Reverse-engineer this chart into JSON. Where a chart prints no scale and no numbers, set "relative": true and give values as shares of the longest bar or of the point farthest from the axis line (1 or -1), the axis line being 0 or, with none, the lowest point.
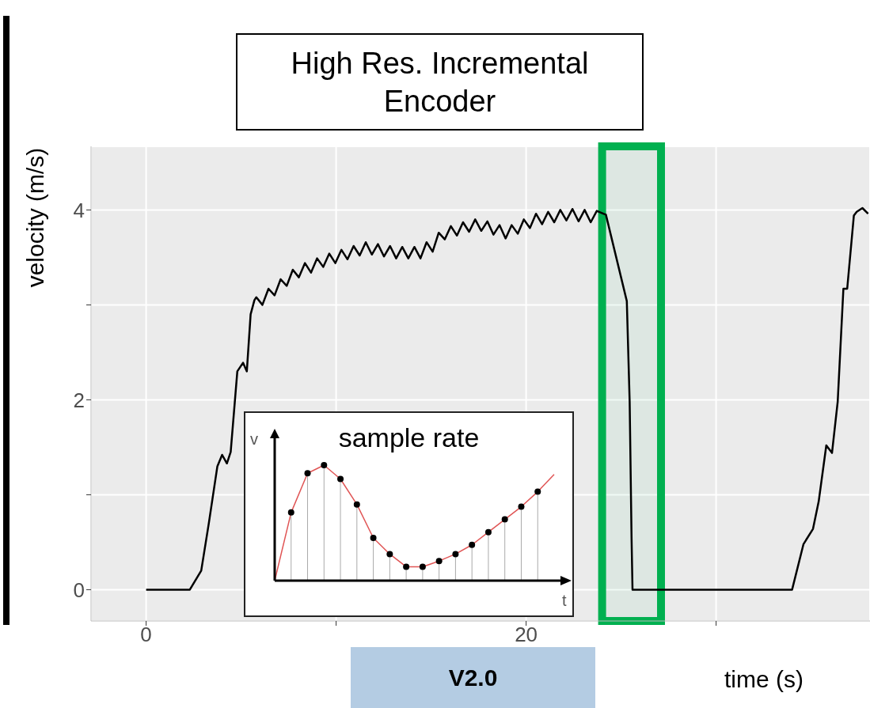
{
  "chart_data": [
    {
      "type": "line",
      "title": "High Res. Incremental Encoder",
      "xlabel": "time (s)",
      "ylabel": "velocity (m/s)",
      "annotations": [
        "V2.0"
      ],
      "x": [
        0,
        2.3,
        2.9,
        3.3,
        3.75,
        4.0,
        4.25,
        4.45,
        4.8,
        5.1,
        5.3,
        5.5,
        5.7,
        5.8,
        6.12,
        6.44,
        6.76,
        7.08,
        7.4,
        7.72,
        8.04,
        8.36,
        8.68,
        9.0,
        9.32,
        9.64,
        9.96,
        10.28,
        10.6,
        10.92,
        11.24,
        11.56,
        11.88,
        12.2,
        12.52,
        12.84,
        13.16,
        13.48,
        13.8,
        14.12,
        14.44,
        14.76,
        15.08,
        15.4,
        15.72,
        16.04,
        16.36,
        16.68,
        17.0,
        17.32,
        17.64,
        17.96,
        18.28,
        18.6,
        18.92,
        19.24,
        19.56,
        19.88,
        20.2,
        20.52,
        20.84,
        21.16,
        21.48,
        21.8,
        22.12,
        22.44,
        22.76,
        23.08,
        23.4,
        23.72,
        24.2,
        25.3,
        25.45,
        25.55,
        25.6,
        34.0,
        34.6,
        35.1,
        35.4,
        35.8,
        36.1,
        36.4,
        36.7,
        36.9,
        37.25,
        37.4,
        37.7,
        38.0
      ],
      "values": [
        0,
        0,
        0.2,
        0.7,
        1.3,
        1.42,
        1.33,
        1.45,
        2.3,
        2.39,
        2.3,
        2.9,
        3.05,
        3.08,
        3.0,
        3.17,
        3.1,
        3.27,
        3.2,
        3.37,
        3.29,
        3.44,
        3.34,
        3.49,
        3.4,
        3.54,
        3.44,
        3.58,
        3.48,
        3.62,
        3.52,
        3.66,
        3.53,
        3.64,
        3.51,
        3.62,
        3.49,
        3.61,
        3.49,
        3.61,
        3.49,
        3.66,
        3.56,
        3.76,
        3.69,
        3.83,
        3.73,
        3.87,
        3.77,
        3.9,
        3.78,
        3.88,
        3.74,
        3.84,
        3.7,
        3.84,
        3.75,
        3.9,
        3.81,
        3.96,
        3.85,
        3.98,
        3.87,
        4.0,
        3.89,
        4.01,
        3.88,
        4.0,
        3.87,
        3.99,
        3.95,
        3.04,
        1.98,
        0.54,
        0,
        0,
        0.48,
        0.64,
        0.93,
        1.52,
        1.44,
        1.98,
        3.17,
        3.17,
        3.94,
        3.98,
        4.02,
        3.96
      ],
      "color": "#000000",
      "xlim": [
        -2.9,
        38.1
      ],
      "xticks": [
        0,
        {
          "value": 10,
          "label": null
        },
        20,
        {
          "value": 30,
          "label": null
        }
      ],
      "ylim": [
        -0.33,
        4.67
      ],
      "yticks": [
        0,
        {
          "value": 1,
          "label": null
        },
        2,
        {
          "value": 3,
          "label": null
        },
        4
      ],
      "grid": true,
      "bands": [
        {
          "axis": "x",
          "from": 24.0,
          "to": 27.1,
          "color": "#00b050"
        }
      ]
    },
    {
      "type": "line",
      "title": "sample rate",
      "xlabel": "t",
      "ylabel": "v",
      "relative": true,
      "categories": [
        null,
        null,
        null,
        null,
        null,
        null,
        null,
        null,
        null,
        null,
        null,
        null,
        null,
        null,
        null,
        null,
        null,
        null
      ],
      "marker": "circle",
      "grid": "x",
      "series": [
        {
          "color": "#e05555",
          "values": [
            0,
            0.59,
            0.93,
            1,
            0.88,
            0.66,
            0.37,
            0.23,
            0.12,
            0.12,
            0.17,
            0.23,
            0.31,
            0.42,
            0.53,
            0.64,
            0.77,
            0.92
          ]
        }
      ]
    }
  ]
}
